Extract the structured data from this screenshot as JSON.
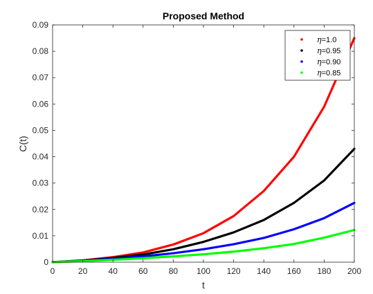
{
  "chart_data": {
    "type": "line",
    "title": "Proposed Method",
    "xlabel": "t",
    "ylabel": "C(t)",
    "xlim": [
      0,
      200
    ],
    "ylim": [
      0,
      0.09
    ],
    "x_ticks": [
      "0",
      "20",
      "40",
      "60",
      "80",
      "100",
      "120",
      "140",
      "160",
      "180",
      "200"
    ],
    "y_ticks": [
      "0",
      "0.01",
      "0.02",
      "0.03",
      "0.04",
      "0.05",
      "0.06",
      "0.07",
      "0.08",
      "0.09"
    ],
    "grid": false,
    "legend_position": "top-right",
    "x": [
      0,
      20,
      40,
      60,
      80,
      100,
      120,
      140,
      160,
      180,
      200
    ],
    "series": [
      {
        "name": "η=1.0",
        "legend_prefix": "η",
        "legend_suffix": "=1.0",
        "color": "#ff0000",
        "values": [
          0,
          0.0007,
          0.0019,
          0.0037,
          0.0067,
          0.011,
          0.0175,
          0.027,
          0.04,
          0.059,
          0.085
        ]
      },
      {
        "name": "η=0.95",
        "legend_prefix": "η",
        "legend_suffix": "=0.95",
        "color": "#000000",
        "values": [
          0,
          0.0006,
          0.0016,
          0.0029,
          0.0049,
          0.0077,
          0.0113,
          0.016,
          0.0225,
          0.031,
          0.043
        ]
      },
      {
        "name": "η=0.90",
        "legend_prefix": "η",
        "legend_suffix": "=0.90",
        "color": "#0000ff",
        "values": [
          0,
          0.0005,
          0.0013,
          0.0022,
          0.0034,
          0.0049,
          0.0068,
          0.0092,
          0.0125,
          0.0167,
          0.0225
        ]
      },
      {
        "name": "η=0.85",
        "legend_prefix": "η",
        "legend_suffix": "=0.85",
        "color": "#00ff00",
        "values": [
          0,
          0.0004,
          0.0009,
          0.0015,
          0.0022,
          0.003,
          0.004,
          0.0053,
          0.0069,
          0.0093,
          0.0122
        ]
      }
    ]
  }
}
